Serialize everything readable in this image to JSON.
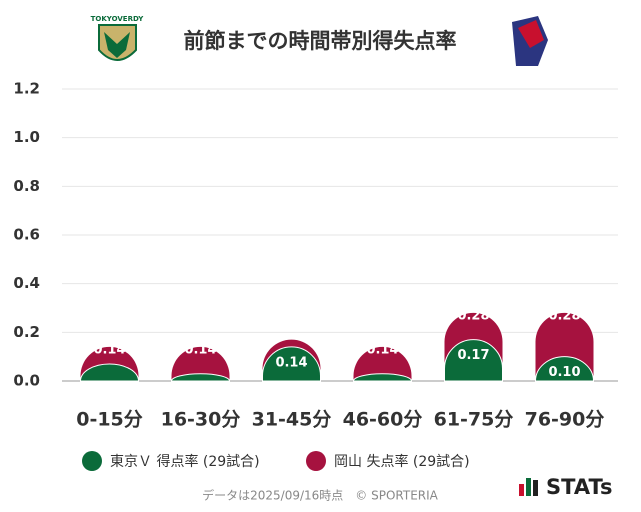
{
  "chart_data": {
    "type": "overlap-bar",
    "title": "前節までの時間帯別得失点率",
    "categories": [
      "0-15分",
      "16-30分",
      "31-45分",
      "46-60分",
      "61-75分",
      "76-90分"
    ],
    "series": [
      {
        "name": "岡山 失点率 (29試合)",
        "color": "#a6123f",
        "values": [
          0.14,
          0.14,
          0.17,
          0.14,
          0.28,
          0.28
        ],
        "value_labels": [
          "0.14",
          "0.14",
          null,
          "0.14",
          "0.28",
          "0.28"
        ]
      },
      {
        "name": "東京Ｖ 得点率 (29試合)",
        "color": "#0b6b3a",
        "values": [
          0.07,
          0.03,
          0.14,
          0.03,
          0.17,
          0.1
        ],
        "value_labels": [
          null,
          null,
          "0.14",
          null,
          "0.17",
          "0.10"
        ]
      }
    ],
    "ylim": [
      0,
      1.2
    ],
    "yticks": [
      {
        "value": 0,
        "label": "0.0"
      },
      {
        "value": 0.2,
        "label": "0.2"
      },
      {
        "value": 0.4,
        "label": "0.4"
      },
      {
        "value": 0.6,
        "label": "0.6"
      },
      {
        "value": 0.8,
        "label": "0.8"
      },
      {
        "value": 1,
        "label": "1.0"
      },
      {
        "value": 1.2,
        "label": "1.2"
      }
    ],
    "grid": true,
    "footer": "データは2025/09/16時点　© SPORTERIA",
    "brand": "STATs",
    "logo_text": "TOKYOVERDY"
  }
}
